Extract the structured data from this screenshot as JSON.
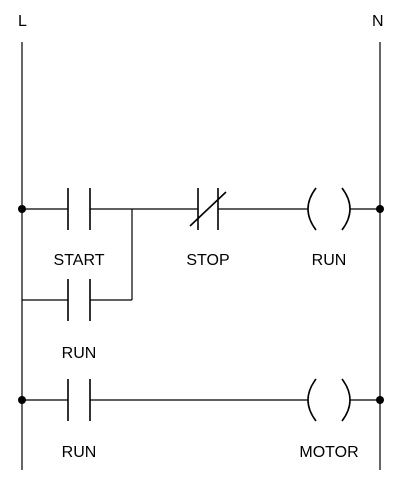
{
  "rails": {
    "left_label": "L",
    "right_label": "N"
  },
  "rungs": [
    {
      "elements": [
        {
          "type": "no-contact",
          "label": "START"
        },
        {
          "type": "nc-contact",
          "label": "STOP"
        },
        {
          "type": "coil",
          "label": "RUN"
        }
      ],
      "branch": {
        "type": "no-contact",
        "label": "RUN"
      }
    },
    {
      "elements": [
        {
          "type": "no-contact",
          "label": "RUN"
        },
        {
          "type": "coil",
          "label": "MOTOR"
        }
      ]
    }
  ],
  "colors": {
    "line": "#000000",
    "background": "#ffffff"
  }
}
